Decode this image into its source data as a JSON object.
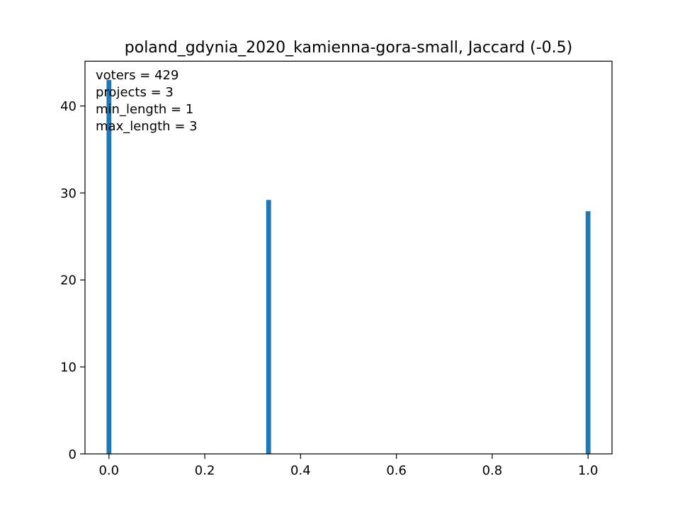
{
  "chart_data": {
    "type": "bar",
    "title": "poland_gdynia_2020_kamienna-gora-small, Jaccard (-0.5)",
    "xlabel": "",
    "ylabel": "",
    "x": [
      0.0,
      0.3333,
      1.0
    ],
    "values": [
      43.0,
      29.2,
      27.9
    ],
    "xlim": [
      -0.05,
      1.05
    ],
    "ylim": [
      0,
      45.15
    ],
    "xticks": [
      0.0,
      0.2,
      0.4,
      0.6,
      0.8,
      1.0
    ],
    "xtick_labels": [
      "0.0",
      "0.2",
      "0.4",
      "0.6",
      "0.8",
      "1.0"
    ],
    "yticks": [
      0,
      10,
      20,
      30,
      40
    ],
    "ytick_labels": [
      "0",
      "10",
      "20",
      "30",
      "40"
    ],
    "bar_color": "#1f77b4",
    "grid": false,
    "legend": "none"
  },
  "stats": {
    "voters": "voters = 429",
    "projects": "projects = 3",
    "min_length": "min_length = 1",
    "max_length": "max_length = 3"
  }
}
